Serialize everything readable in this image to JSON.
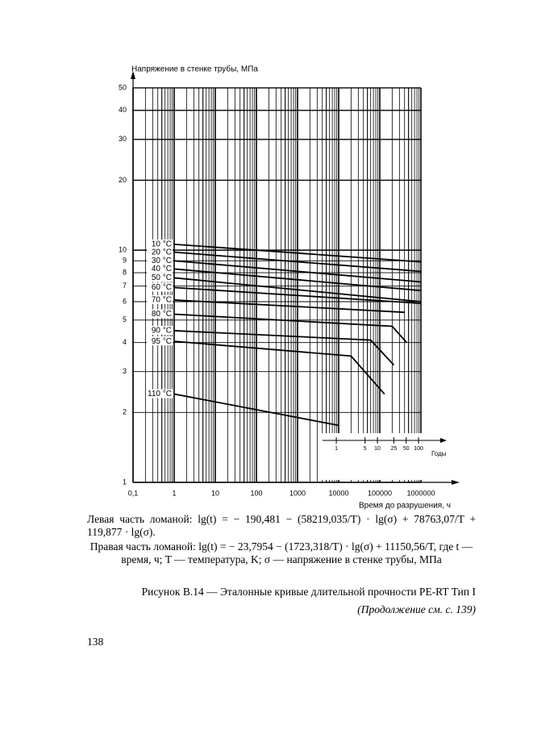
{
  "chart_data": {
    "type": "line",
    "y_label": "Напряжение в стенке трубы, МПа",
    "x_label": "Время до разрушения, ч",
    "log_x": true,
    "log_y": true,
    "grid": true,
    "color": "#000000",
    "xlim": [
      0.1,
      1000000
    ],
    "ylim": [
      1,
      55
    ],
    "xticks": [
      {
        "value": 0.1,
        "label": "0,1"
      },
      1,
      10,
      100,
      1000,
      10000,
      100000,
      1000000
    ],
    "yticks": [
      1,
      2,
      3,
      4,
      5,
      6,
      7,
      8,
      9,
      10,
      20,
      30,
      40,
      50
    ],
    "series": [
      {
        "name": "10 °C",
        "x": [
          1,
          1000000
        ],
        "values": [
          10.6,
          8.9
        ]
      },
      {
        "name": "20 °C",
        "x": [
          1,
          1000000
        ],
        "values": [
          9.8,
          8.1
        ]
      },
      {
        "name": "30 °C",
        "x": [
          1,
          1000000
        ],
        "values": [
          9.0,
          7.3
        ]
      },
      {
        "name": "40 °C",
        "x": [
          1,
          1000000
        ],
        "values": [
          8.3,
          6.7
        ]
      },
      {
        "name": "50 °C",
        "x": [
          1,
          1000000
        ],
        "values": [
          7.6,
          6.0
        ]
      },
      {
        "name": "60 °C",
        "x": [
          1,
          1000000
        ],
        "values": [
          6.9,
          5.9
        ]
      },
      {
        "name": "70 °C",
        "x": [
          1,
          400000
        ],
        "values": [
          6.1,
          5.4
        ]
      },
      {
        "name": "80 °C",
        "x": [
          1,
          200000,
          450000
        ],
        "values": [
          5.3,
          4.7,
          4.0
        ]
      },
      {
        "name": "90 °C",
        "x": [
          1,
          60000,
          220000
        ],
        "values": [
          4.5,
          4.1,
          3.2
        ]
      },
      {
        "name": "95 °C",
        "x": [
          1,
          20000,
          130000
        ],
        "values": [
          4.05,
          3.5,
          2.4
        ]
      },
      {
        "name": "110 °C",
        "x": [
          1,
          10000
        ],
        "values": [
          2.4,
          1.76
        ]
      }
    ],
    "years_axis": {
      "label": "Годы",
      "ticks": [
        1,
        5,
        10,
        25,
        50,
        100
      ]
    }
  },
  "text": {
    "left_formula": "Левая часть ломаной: lg(t) = − 190,481 − (58219,035/T) · lg(σ) + 78763,07/T + 119,877 · lg(σ).",
    "right_formula": "Правая часть ломаной: lg(t) = − 23,7954 − (1723,318/T) · lg(σ) + 11150,56/T, где t — время, ч; T — температура, K; σ — напряжение в стенке трубы, МПа",
    "caption": "Рисунок В.14 — Эталонные кривые длительной прочности PE-RT Тип I",
    "continuation": "(Продолжение см. с. 139)",
    "page_number": "138"
  }
}
